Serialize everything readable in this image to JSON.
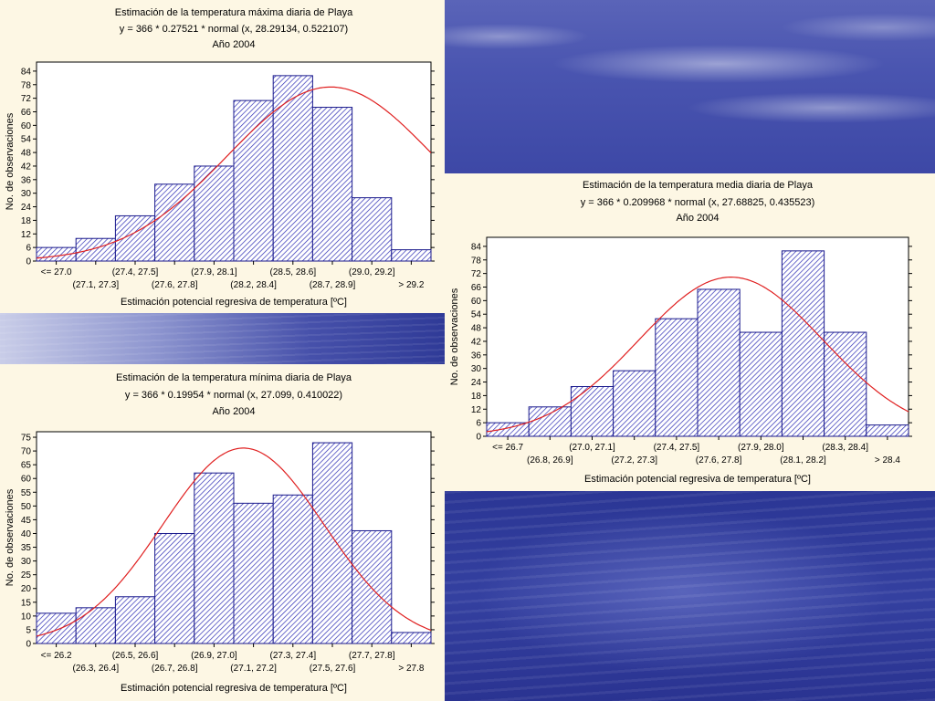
{
  "colors": {
    "background": "#fdf7e4",
    "bar_fill": "#ffffff",
    "bar_hatch": "#2d2db4",
    "bar_stroke": "#1a1a8c",
    "curve": "#e02020",
    "plot_bg": "#ffffff"
  },
  "charts": [
    {
      "id": "maxima",
      "chart_data": {
        "type": "bar",
        "title": "Estimación de la temperatura máxima diaria de Playa",
        "subtitle": "y = 366 * 0.27521 * normal (x, 28.29134, 0.522107)",
        "subtitle2": "Año 2004",
        "xlabel": "Estimación potencial regresiva de temperatura [ºC]",
        "ylabel": "No. de observaciones",
        "categories": [
          "<= 27.0",
          "(27.1, 27.3]",
          "(27.4, 27.5]",
          "(27.6, 27.8]",
          "(27.9, 28.1]",
          "(28.2, 28.4]",
          "(28.5, 28.6]",
          "(28.7, 28.9]",
          "(29.0, 29.2]",
          "> 29.2"
        ],
        "values": [
          6,
          10,
          20,
          34,
          42,
          71,
          82,
          68,
          28,
          5
        ],
        "ylim": [
          0,
          88
        ],
        "yticks": [
          0,
          6,
          12,
          18,
          24,
          30,
          36,
          42,
          48,
          54,
          60,
          66,
          72,
          78,
          84
        ],
        "fit": {
          "mean": 28.29134,
          "sd": 0.522107,
          "n": 366,
          "binwidth": 0.27521,
          "first_center": 26.9,
          "step": 0.2
        },
        "grid": false
      }
    },
    {
      "id": "minima",
      "chart_data": {
        "type": "bar",
        "title": "Estimación de la temperatura mínima diaria de Playa",
        "subtitle": "y = 366 * 0.19954 * normal (x, 27.099, 0.410022)",
        "subtitle2": "Año 2004",
        "xlabel": "Estimación potencial regresiva de temperatura [ºC]",
        "ylabel": "No. de observaciones",
        "categories": [
          "<= 26.2",
          "(26.3, 26.4]",
          "(26.5,  26.6]",
          "(26.7, 26.8]",
          "(26.9, 27.0]",
          "(27.1, 27.2]",
          "(27.3, 27.4]",
          "(27.5, 27.6]",
          "(27.7, 27.8]",
          "> 27.8"
        ],
        "values": [
          11,
          13,
          17,
          40,
          62,
          51,
          54,
          73,
          41,
          4
        ],
        "ylim": [
          0,
          77
        ],
        "yticks": [
          0,
          5,
          10,
          15,
          20,
          25,
          30,
          35,
          40,
          45,
          50,
          55,
          60,
          65,
          70,
          75
        ],
        "fit": {
          "mean": 27.099,
          "sd": 0.410022,
          "n": 366,
          "binwidth": 0.19954,
          "first_center": 26.15,
          "step": 0.2
        },
        "grid": false
      }
    },
    {
      "id": "media",
      "chart_data": {
        "type": "bar",
        "title": "Estimación de la temperatura media diaria de Playa",
        "subtitle": "y = 366 * 0.209968 * normal (x, 27.68825, 0.435523)",
        "subtitle2": "Año 2004",
        "xlabel": "Estimación potencial regresiva de temperatura [ºC]",
        "ylabel": "No. de observaciones",
        "categories": [
          "<= 26.7",
          "(26.8, 26.9]",
          "(27.0, 27.1]",
          "(27.2, 27.3]",
          "(27.4, 27.5]",
          "(27.6, 27.8]",
          "(27.9, 28.0]",
          "(28.1, 28.2]",
          "(28.3, 28.4]",
          "> 28.4"
        ],
        "values": [
          6,
          13,
          22,
          29,
          52,
          65,
          46,
          82,
          46,
          5
        ],
        "ylim": [
          0,
          88
        ],
        "yticks": [
          0,
          6,
          12,
          18,
          24,
          30,
          36,
          42,
          48,
          54,
          60,
          66,
          72,
          78,
          84
        ],
        "fit": {
          "mean": 27.68825,
          "sd": 0.435523,
          "n": 366,
          "binwidth": 0.209968,
          "first_center": 26.63,
          "step": 0.2
        },
        "grid": false
      }
    }
  ]
}
